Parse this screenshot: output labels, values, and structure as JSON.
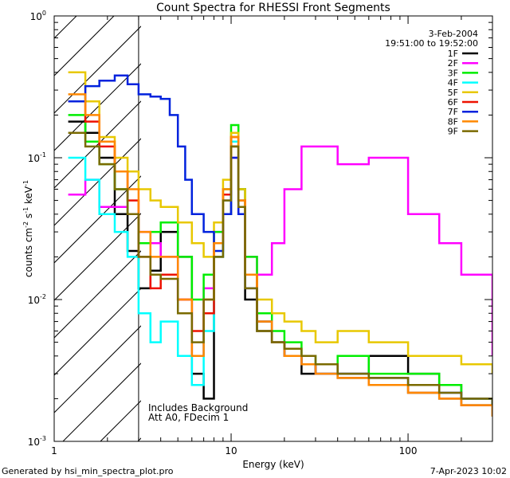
{
  "chart_data": {
    "type": "line",
    "title": "Count Spectra for RHESSI Front Segments",
    "xlabel": "Energy (keV)",
    "ylabel_parts": [
      "counts cm",
      "-2",
      " s",
      "-1",
      " keV",
      "-1"
    ],
    "x_scale": "log",
    "y_scale": "log",
    "xlim": [
      1,
      300
    ],
    "ylim": [
      0.001,
      1
    ],
    "x_ticks": [
      {
        "value": 1,
        "label": "1"
      },
      {
        "value": 10,
        "label": "10"
      },
      {
        "value": 100,
        "label": "100"
      }
    ],
    "y_ticks": [
      {
        "value": 0.001,
        "base": "10",
        "exp": "-3"
      },
      {
        "value": 0.01,
        "base": "10",
        "exp": "-2"
      },
      {
        "value": 0.1,
        "base": "10",
        "exp": "-1"
      },
      {
        "value": 1,
        "base": "10",
        "exp": "0"
      }
    ],
    "legend_header": [
      "3-Feb-2004",
      "19:51:00 to 19:52:00"
    ],
    "legend_placement": "top-right",
    "shaded_region": {
      "x_min": 1,
      "x_max": 3,
      "pattern": "diagonal hatch"
    },
    "annotations": [
      "Includes Background",
      "Att A0, FDecim 1"
    ],
    "series": [
      {
        "name": "1F",
        "color": "#000000",
        "x": [
          1.2,
          1.5,
          1.8,
          2.2,
          2.6,
          3.0,
          3.5,
          4.0,
          5.0,
          6.0,
          7.0,
          8.0,
          9.0,
          10.0,
          11.0,
          12.0,
          14.0,
          17.0,
          20.0,
          25.0,
          30.0,
          40.0,
          60.0,
          100.0,
          150.0,
          200.0,
          300.0
        ],
        "y": [
          0.18,
          0.15,
          0.1,
          0.04,
          0.022,
          0.012,
          0.016,
          0.03,
          0.02,
          0.003,
          0.002,
          0.02,
          0.04,
          0.12,
          0.06,
          0.01,
          0.006,
          0.005,
          0.004,
          0.003,
          0.0035,
          0.003,
          0.004,
          0.003,
          0.0025,
          0.002,
          0.0018
        ]
      },
      {
        "name": "2F",
        "color": "#ff00ff",
        "x": [
          1.2,
          1.5,
          1.8,
          2.2,
          2.6,
          3.0,
          3.5,
          4.0,
          5.0,
          6.0,
          7.0,
          8.0,
          9.0,
          10.0,
          11.0,
          12.0,
          14.0,
          17.0,
          20.0,
          25.0,
          30.0,
          40.0,
          60.0,
          100.0,
          150.0,
          200.0,
          300.0
        ],
        "y": [
          0.055,
          0.07,
          0.045,
          0.045,
          0.04,
          0.03,
          0.025,
          0.02,
          0.01,
          0.004,
          0.012,
          0.03,
          0.05,
          0.1,
          0.04,
          0.02,
          0.015,
          0.025,
          0.06,
          0.12,
          0.12,
          0.09,
          0.1,
          0.04,
          0.025,
          0.015,
          0.004
        ]
      },
      {
        "name": "3F",
        "color": "#00ee00",
        "x": [
          1.2,
          1.5,
          1.8,
          2.2,
          2.6,
          3.0,
          3.5,
          4.0,
          5.0,
          6.0,
          7.0,
          8.0,
          9.0,
          10.0,
          11.0,
          12.0,
          14.0,
          17.0,
          20.0,
          25.0,
          30.0,
          40.0,
          60.0,
          100.0,
          150.0,
          200.0,
          300.0
        ],
        "y": [
          0.2,
          0.13,
          0.09,
          0.06,
          0.04,
          0.025,
          0.03,
          0.035,
          0.02,
          0.01,
          0.015,
          0.03,
          0.06,
          0.17,
          0.06,
          0.02,
          0.008,
          0.006,
          0.005,
          0.004,
          0.0035,
          0.004,
          0.003,
          0.003,
          0.0025,
          0.002,
          0.0015
        ]
      },
      {
        "name": "4F",
        "color": "#00ffff",
        "x": [
          1.2,
          1.5,
          1.8,
          2.2,
          2.6,
          3.0,
          3.5,
          4.0,
          5.0,
          6.0,
          7.0,
          8.0,
          9.0,
          10.0,
          11.0,
          12.0,
          14.0,
          17.0,
          20.0,
          25.0,
          30.0,
          40.0,
          60.0,
          100.0,
          150.0,
          200.0,
          300.0
        ],
        "y": [
          0.1,
          0.07,
          0.04,
          0.03,
          0.02,
          0.008,
          0.005,
          0.007,
          0.004,
          0.0025,
          0.006,
          0.02,
          0.05,
          0.13,
          0.05,
          0.015,
          0.007,
          0.005,
          0.004,
          0.0035,
          0.003,
          0.0028,
          0.0025,
          0.0022,
          0.002,
          0.0018,
          0.0015
        ]
      },
      {
        "name": "5F",
        "color": "#e8c800",
        "x": [
          1.2,
          1.5,
          1.8,
          2.2,
          2.6,
          3.0,
          3.5,
          4.0,
          5.0,
          6.0,
          7.0,
          8.0,
          9.0,
          10.0,
          11.0,
          12.0,
          14.0,
          17.0,
          20.0,
          25.0,
          30.0,
          40.0,
          60.0,
          100.0,
          150.0,
          200.0,
          300.0
        ],
        "y": [
          0.4,
          0.25,
          0.14,
          0.1,
          0.08,
          0.06,
          0.05,
          0.045,
          0.035,
          0.025,
          0.02,
          0.035,
          0.07,
          0.15,
          0.06,
          0.015,
          0.01,
          0.008,
          0.007,
          0.006,
          0.005,
          0.006,
          0.005,
          0.004,
          0.004,
          0.0035,
          0.003
        ]
      },
      {
        "name": "6F",
        "color": "#ee1100",
        "x": [
          1.2,
          1.5,
          1.8,
          2.2,
          2.6,
          3.0,
          3.5,
          4.0,
          5.0,
          6.0,
          7.0,
          8.0,
          9.0,
          10.0,
          11.0,
          12.0,
          14.0,
          17.0,
          20.0,
          25.0,
          30.0,
          40.0,
          60.0,
          100.0,
          150.0,
          200.0,
          300.0
        ],
        "y": [
          0.25,
          0.18,
          0.12,
          0.08,
          0.05,
          0.02,
          0.012,
          0.015,
          0.01,
          0.006,
          0.008,
          0.025,
          0.055,
          0.14,
          0.05,
          0.015,
          0.007,
          0.005,
          0.004,
          0.0035,
          0.003,
          0.0028,
          0.0025,
          0.0022,
          0.002,
          0.0018,
          0.0015
        ]
      },
      {
        "name": "7F",
        "color": "#0022dd",
        "x": [
          1.2,
          1.5,
          1.8,
          2.2,
          2.6,
          3.0,
          3.5,
          4.0,
          4.5,
          5.0,
          5.5,
          6.0,
          7.0,
          8.0,
          9.0,
          10.0,
          11.0,
          12.0,
          14.0,
          17.0,
          20.0,
          25.0,
          30.0,
          40.0,
          60.0,
          100.0,
          150.0,
          200.0,
          300.0
        ],
        "y": [
          0.25,
          0.32,
          0.35,
          0.38,
          0.33,
          0.28,
          0.27,
          0.26,
          0.2,
          0.12,
          0.07,
          0.04,
          0.03,
          0.022,
          0.04,
          0.1,
          0.04,
          0.012,
          0.007,
          0.005,
          0.004,
          0.0035,
          0.003,
          0.003,
          0.0028,
          0.0025,
          0.0022,
          0.002,
          0.0018
        ]
      },
      {
        "name": "8F",
        "color": "#ff8800",
        "x": [
          1.2,
          1.5,
          1.8,
          2.2,
          2.6,
          3.0,
          3.5,
          4.0,
          5.0,
          6.0,
          7.0,
          8.0,
          9.0,
          10.0,
          11.0,
          12.0,
          14.0,
          17.0,
          20.0,
          25.0,
          30.0,
          40.0,
          60.0,
          100.0,
          150.0,
          200.0,
          300.0
        ],
        "y": [
          0.28,
          0.2,
          0.13,
          0.08,
          0.06,
          0.03,
          0.02,
          0.02,
          0.01,
          0.004,
          0.01,
          0.025,
          0.06,
          0.14,
          0.05,
          0.015,
          0.007,
          0.005,
          0.004,
          0.0035,
          0.003,
          0.0028,
          0.0025,
          0.0022,
          0.002,
          0.0018,
          0.0015
        ]
      },
      {
        "name": "9F",
        "color": "#7a6a00",
        "x": [
          1.2,
          1.5,
          1.8,
          2.2,
          2.6,
          3.0,
          3.5,
          4.0,
          5.0,
          6.0,
          7.0,
          8.0,
          9.0,
          10.0,
          11.0,
          12.0,
          14.0,
          17.0,
          20.0,
          25.0,
          30.0,
          40.0,
          60.0,
          100.0,
          150.0,
          200.0,
          300.0
        ],
        "y": [
          0.15,
          0.12,
          0.09,
          0.06,
          0.04,
          0.02,
          0.015,
          0.014,
          0.008,
          0.005,
          0.01,
          0.02,
          0.05,
          0.12,
          0.045,
          0.012,
          0.006,
          0.005,
          0.0045,
          0.004,
          0.0035,
          0.003,
          0.0028,
          0.0025,
          0.0022,
          0.002,
          0.0018
        ]
      }
    ]
  },
  "footer": {
    "generated_by": "Generated by hsi_min_spectra_plot.pro",
    "date": "7-Apr-2023 10:02"
  }
}
